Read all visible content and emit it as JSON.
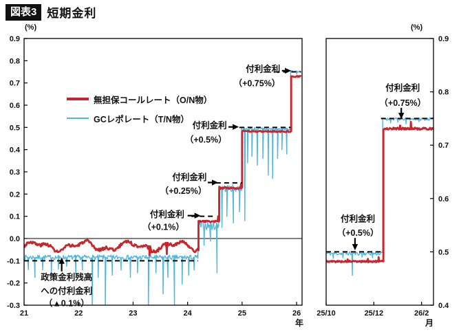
{
  "header": {
    "tag": "図表3",
    "title": "短期金利"
  },
  "legend": [
    {
      "label": "無担保コールレート（O/N物）",
      "color": "#c9252d"
    },
    {
      "label": "GCレポレート（T/N物）",
      "color": "#4fb6de"
    }
  ],
  "colors": {
    "red": "#c9252d",
    "blue": "#4fb6de",
    "dash": "#000000",
    "axis": "#000000"
  },
  "chart_data": [
    {
      "id": "left-panel",
      "type": "line",
      "title": "",
      "x_unit": "年",
      "y_unit": "(%)",
      "xlim": [
        21,
        26.1
      ],
      "ylim": [
        -0.3,
        0.9
      ],
      "y_axis_side": "left",
      "grid": false,
      "zero_line": 0.0,
      "xticks": [
        {
          "v": 21,
          "label": "21"
        },
        {
          "v": 22,
          "label": "22"
        },
        {
          "v": 23,
          "label": "23"
        },
        {
          "v": 24,
          "label": "24"
        },
        {
          "v": 25,
          "label": "25"
        },
        {
          "v": 26,
          "label": "26"
        }
      ],
      "yticks": [
        {
          "v": 0.9,
          "label": "0.9"
        },
        {
          "v": 0.8,
          "label": "0.8"
        },
        {
          "v": 0.7,
          "label": "0.7"
        },
        {
          "v": 0.6,
          "label": "0.6"
        },
        {
          "v": 0.5,
          "label": "0.5"
        },
        {
          "v": 0.4,
          "label": "0.4"
        },
        {
          "v": 0.3,
          "label": "0.3"
        },
        {
          "v": 0.2,
          "label": "0.2"
        },
        {
          "v": 0.1,
          "label": "0.1"
        },
        {
          "v": 0.0,
          "label": "0.0"
        },
        {
          "v": -0.1,
          "label": "-0.1"
        },
        {
          "v": -0.2,
          "label": "-0.2"
        },
        {
          "v": -0.3,
          "label": "-0.3"
        }
      ],
      "series": [
        {
          "name": "無担保コールレート（O/N物）",
          "color": "#c9252d",
          "width": 2.8,
          "segments": [
            {
              "x0": 21.0,
              "x1": 24.2,
              "y": -0.035,
              "amp": 0.007,
              "wander": true
            },
            {
              "x0": 24.2,
              "x1": 24.58,
              "y": 0.077,
              "amp": 0.004
            },
            {
              "x0": 24.58,
              "x1": 25.0,
              "y": 0.228,
              "amp": 0.005
            },
            {
              "x0": 25.0,
              "x1": 25.9,
              "y": 0.482,
              "amp": 0.003
            },
            {
              "x0": 25.9,
              "x1": 26.08,
              "y": 0.73,
              "amp": 0.003
            }
          ],
          "spikes": [
            [
              23.3,
              -0.075
            ],
            [
              23.62,
              -0.07
            ],
            [
              24.56,
              0.1
            ],
            [
              24.98,
              0.246
            ]
          ]
        },
        {
          "name": "GCレポレート（T/N物）",
          "color": "#4fb6de",
          "width": 1.4,
          "segments": [
            {
              "x0": 21.0,
              "x1": 24.19,
              "y": -0.085,
              "amp": 0.011
            },
            {
              "x0": 24.19,
              "x1": 24.57,
              "y": 0.058,
              "amp": 0.02
            },
            {
              "x0": 24.57,
              "x1": 24.99,
              "y": 0.226,
              "amp": 0.016
            },
            {
              "x0": 24.99,
              "x1": 25.89,
              "y": 0.492,
              "amp": 0.009
            },
            {
              "x0": 25.89,
              "x1": 26.08,
              "y": 0.752,
              "amp": 0.004
            }
          ],
          "spikes": [
            [
              21.08,
              -0.14
            ],
            [
              21.2,
              -0.175
            ],
            [
              21.34,
              -0.142
            ],
            [
              21.5,
              -0.16
            ],
            [
              21.63,
              -0.138
            ],
            [
              21.78,
              -0.125
            ],
            [
              21.95,
              -0.165
            ],
            [
              22.07,
              -0.142
            ],
            [
              22.25,
              -0.315
            ],
            [
              22.36,
              -0.175
            ],
            [
              22.49,
              -0.315
            ],
            [
              22.62,
              -0.165
            ],
            [
              22.78,
              -0.142
            ],
            [
              22.95,
              -0.175
            ],
            [
              23.08,
              -0.155
            ],
            [
              23.28,
              -0.315
            ],
            [
              23.42,
              -0.155
            ],
            [
              23.55,
              -0.25
            ],
            [
              23.64,
              -0.175
            ],
            [
              23.76,
              -0.315
            ],
            [
              23.9,
              -0.205
            ],
            [
              24.02,
              -0.165
            ],
            [
              24.12,
              -0.142
            ],
            [
              24.3,
              -0.03
            ],
            [
              24.42,
              -0.012
            ],
            [
              24.54,
              -0.155
            ],
            [
              24.63,
              0.05
            ],
            [
              24.72,
              0.1
            ],
            [
              24.84,
              0.07
            ],
            [
              24.95,
              0.12
            ],
            [
              25.05,
              0.08
            ],
            [
              25.1,
              0.34
            ],
            [
              25.18,
              0.37
            ],
            [
              25.28,
              0.33
            ],
            [
              25.38,
              0.36
            ],
            [
              25.48,
              0.285
            ],
            [
              25.56,
              0.27
            ],
            [
              25.65,
              0.36
            ],
            [
              25.73,
              0.4
            ],
            [
              25.82,
              0.38
            ],
            [
              26.0,
              0.74
            ]
          ]
        }
      ],
      "dashes": [
        {
          "y": -0.1,
          "x0": 21.0,
          "x1": 24.19
        },
        {
          "y": 0.1,
          "x0": 24.07,
          "x1": 24.52
        },
        {
          "y": 0.25,
          "x0": 24.52,
          "x1": 25.0
        },
        {
          "y": 0.5,
          "x0": 24.95,
          "x1": 25.89
        },
        {
          "y": 0.75,
          "x0": 25.6,
          "x1": 26.08
        }
      ],
      "annotations": [
        {
          "lines": [
            {
              "t": "付利金利",
              "y": 0.109
            },
            {
              "t": "（+0.1%）",
              "y": 0.051
            }
          ],
          "x": 23.94,
          "align": "right",
          "arrow": {
            "from": [
              24.0,
              0.103
            ],
            "to": [
              24.24,
              0.103
            ]
          }
        },
        {
          "lines": [
            {
              "t": "付利金利",
              "y": 0.275
            },
            {
              "t": "（+0.25%）",
              "y": 0.214
            }
          ],
          "x": 24.35,
          "align": "right",
          "arrow": {
            "from": [
              24.37,
              0.252
            ],
            "to": [
              24.56,
              0.252
            ]
          }
        },
        {
          "lines": [
            {
              "t": "付利金利",
              "y": 0.509
            },
            {
              "t": "（+0.5%）",
              "y": 0.444
            }
          ],
          "x": 24.72,
          "align": "right",
          "arrow": {
            "from": [
              24.75,
              0.502
            ],
            "to": [
              24.94,
              0.502
            ]
          }
        },
        {
          "lines": [
            {
              "t": "付利金利",
              "y": 0.762
            },
            {
              "t": "（+0.75%）",
              "y": 0.697
            }
          ],
          "x": 25.7,
          "align": "right",
          "arrow": {
            "from": [
              25.73,
              0.755
            ],
            "to": [
              25.9,
              0.755
            ]
          }
        },
        {
          "lines": [
            {
              "t": "政策金利残高",
              "y": -0.175
            },
            {
              "t": "への付利金利",
              "y": -0.236
            },
            {
              "t": "（▲0.1%）",
              "y": -0.292
            }
          ],
          "x": 21.78,
          "align": "center",
          "arrow": {
            "from": [
              21.69,
              -0.148
            ],
            "to": [
              21.69,
              -0.086
            ]
          }
        }
      ]
    },
    {
      "id": "right-panel",
      "type": "line",
      "title": "",
      "x_unit": "月",
      "y_unit": "(%)",
      "xlim": [
        0,
        4.5
      ],
      "ylim": [
        0.4,
        0.9
      ],
      "y_axis_side": "right",
      "grid": false,
      "zero_line": null,
      "xticks": [
        {
          "v": 0,
          "label": "25/10"
        },
        {
          "v": 2,
          "label": "25/12"
        },
        {
          "v": 4,
          "label": "26/2"
        }
      ],
      "yticks": [
        {
          "v": 0.9,
          "label": "0.9"
        },
        {
          "v": 0.8,
          "label": "0.8"
        },
        {
          "v": 0.7,
          "label": "0.7"
        },
        {
          "v": 0.6,
          "label": "0.6"
        },
        {
          "v": 0.5,
          "label": "0.5"
        },
        {
          "v": 0.4,
          "label": "0.4"
        }
      ],
      "series": [
        {
          "name": "無担保コールレート（O/N物）",
          "color": "#c9252d",
          "width": 2.8,
          "segments": [
            {
              "x0": 0,
              "x1": 2.4,
              "y": 0.482,
              "amp": 0.0015
            },
            {
              "x0": 2.4,
              "x1": 4.5,
              "y": 0.731,
              "amp": 0.002
            }
          ],
          "spikes": [
            [
              0.9,
              0.486
            ],
            [
              1.75,
              0.487
            ],
            [
              2.2,
              0.49
            ],
            [
              3.1,
              0.737
            ],
            [
              3.55,
              0.744
            ]
          ]
        },
        {
          "name": "GCレポレート（T/N物）",
          "color": "#4fb6de",
          "width": 1.4,
          "segments": [
            {
              "x0": 0,
              "x1": 2.37,
              "y": 0.497,
              "amp": 0.0035
            },
            {
              "x0": 2.37,
              "x1": 4.5,
              "y": 0.749,
              "amp": 0.0025
            }
          ],
          "spikes": [
            [
              0.3,
              0.488
            ],
            [
              0.7,
              0.489
            ],
            [
              1.1,
              0.456
            ],
            [
              1.5,
              0.49
            ],
            [
              1.95,
              0.489
            ],
            [
              2.7,
              0.742
            ],
            [
              3.0,
              0.743
            ],
            [
              3.35,
              0.74
            ],
            [
              3.9,
              0.744
            ]
          ]
        }
      ],
      "dashes": [
        {
          "y": 0.5,
          "x0": 0,
          "x1": 2.37
        },
        {
          "y": 0.75,
          "x0": 2.3,
          "x1": 4.5
        }
      ],
      "annotations": [
        {
          "lines": [
            {
              "t": "付利金利",
              "y": 0.807
            },
            {
              "t": "（+0.75%）",
              "y": 0.779
            }
          ],
          "x": 3.21,
          "align": "center",
          "arrow": {
            "from": [
              3.15,
              0.77
            ],
            "to": [
              3.15,
              0.749
            ]
          }
        },
        {
          "lines": [
            {
              "t": "付利金利",
              "y": 0.562
            },
            {
              "t": "（+0.5%）",
              "y": 0.535
            }
          ],
          "x": 1.33,
          "align": "center",
          "arrow": {
            "from": [
              1.21,
              0.526
            ],
            "to": [
              1.21,
              0.503
            ]
          }
        }
      ]
    }
  ]
}
